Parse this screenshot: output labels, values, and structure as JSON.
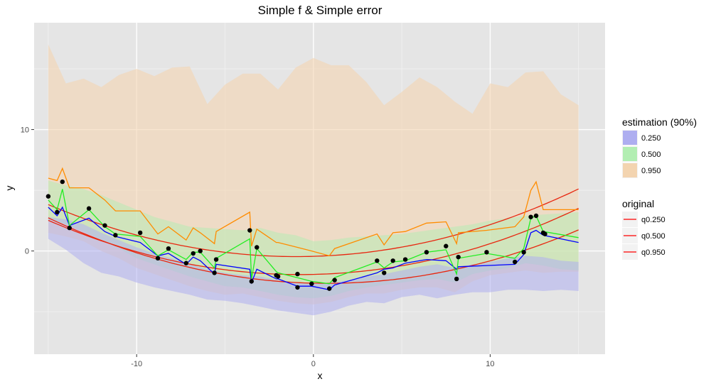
{
  "chart_data": {
    "type": "line",
    "title": "Simple f & Simple error",
    "xlabel": "x",
    "ylabel": "y",
    "xlim": [
      -15.8,
      16.5
    ],
    "ylim": [
      -8.5,
      18.8
    ],
    "x_ticks": [
      -10,
      0,
      10
    ],
    "y_ticks": [
      0,
      10
    ],
    "grid": true,
    "background": "#e5e5e5",
    "legends": [
      {
        "title": "estimation (90%)",
        "entries": [
          {
            "label": "0.250",
            "color": "#aeaef0"
          },
          {
            "label": "0.500",
            "color": "#b2eeb2"
          },
          {
            "label": "0.950",
            "color": "#f3d4b0"
          }
        ]
      },
      {
        "title": "original",
        "entries": [
          {
            "label": "q0.250",
            "color": "#ff0000"
          },
          {
            "label": "q0.500",
            "color": "#ff0000"
          },
          {
            "label": "q0.950",
            "color": "#ff0000"
          }
        ]
      }
    ],
    "points": {
      "x": [
        -15,
        -14.5,
        -14.2,
        -13.8,
        -12.7,
        -11.8,
        -11.2,
        -9.8,
        -8.8,
        -8.2,
        -7.2,
        -6.8,
        -6.4,
        -5.6,
        -5.5,
        -3.6,
        -3.5,
        -3.2,
        -2.1,
        -2.0,
        -0.9,
        -0.9,
        -0.1,
        0.9,
        1.2,
        3.6,
        4.0,
        4.5,
        5.2,
        6.4,
        7.5,
        8.1,
        8.2,
        9.8,
        11.4,
        11.9,
        12.3,
        12.6,
        13.0,
        13.1
      ],
      "y": [
        4.5,
        3.2,
        5.7,
        1.9,
        3.5,
        2.1,
        1.3,
        1.5,
        -0.6,
        0.2,
        -1.0,
        -0.2,
        0.0,
        -1.8,
        -0.7,
        1.7,
        -2.5,
        0.3,
        -2.0,
        -2.1,
        -3.0,
        -1.9,
        -2.7,
        -3.1,
        -2.4,
        -0.8,
        -1.8,
        -0.8,
        -0.7,
        -0.1,
        0.4,
        -2.3,
        -0.5,
        -0.1,
        -0.9,
        -0.1,
        2.8,
        2.9,
        1.5,
        1.4
      ]
    },
    "series": [
      {
        "name": "q0.250",
        "type": "curve",
        "color": "#e8260f",
        "a": 0.0217,
        "b": -0.033,
        "c": -2.65
      },
      {
        "name": "q0.500",
        "type": "curve",
        "color": "#e8260f",
        "a": 0.022,
        "b": 0.033,
        "c": -1.93
      },
      {
        "name": "q0.950",
        "type": "curve",
        "color": "#e8260f",
        "a": 0.0218,
        "b": 0.043,
        "c": -0.44
      },
      {
        "name": "0.250",
        "type": "line",
        "color": "#0000ff",
        "x": [
          -15,
          -14.5,
          -14.2,
          -13.8,
          -12.7,
          -11.8,
          -11.2,
          -9.8,
          -8.8,
          -8.2,
          -7.2,
          -6.8,
          -6.4,
          -5.6,
          -5.5,
          -3.6,
          -3.5,
          -3.2,
          -2.1,
          -2.0,
          -0.9,
          -0.1,
          0.9,
          1.2,
          3.6,
          4.0,
          4.5,
          5.2,
          6.4,
          7.5,
          8.1,
          8.2,
          9.8,
          11.4,
          11.9,
          12.3,
          12.6,
          13.0,
          15
        ],
        "y": [
          3.6,
          2.9,
          3.6,
          2.1,
          2.7,
          1.6,
          1.2,
          0.7,
          -0.4,
          -0.2,
          -1.1,
          -0.5,
          -0.8,
          -1.9,
          -1.1,
          -1.5,
          -2.6,
          -1.5,
          -2.3,
          -2.3,
          -2.9,
          -2.9,
          -3.2,
          -2.8,
          -1.8,
          -1.5,
          -1.4,
          -1.0,
          -0.7,
          -0.8,
          -1.5,
          -1.3,
          -1.2,
          -1.1,
          -0.3,
          1.5,
          1.7,
          1.3,
          0.7
        ]
      },
      {
        "name": "0.500",
        "type": "line",
        "color": "#22ee22",
        "x": [
          -15,
          -14.5,
          -14.2,
          -13.8,
          -12.7,
          -11.8,
          -11.2,
          -9.8,
          -8.8,
          -8.2,
          -7.2,
          -6.8,
          -6.4,
          -5.6,
          -5.5,
          -3.6,
          -3.5,
          -3.2,
          -2.1,
          -2.0,
          -0.9,
          -0.1,
          0.9,
          1.2,
          3.6,
          4.0,
          4.5,
          5.2,
          6.4,
          7.5,
          8.1,
          8.2,
          9.8,
          11.4,
          11.9,
          12.3,
          12.6,
          13.0,
          15
        ],
        "y": [
          4.2,
          3.4,
          5.1,
          2.1,
          3.4,
          2.0,
          1.4,
          1.2,
          -0.4,
          0.1,
          -0.7,
          -0.1,
          -0.1,
          -1.4,
          -0.6,
          1.0,
          -2.3,
          0.2,
          -1.7,
          -1.8,
          -2.2,
          -2.5,
          -2.7,
          -2.2,
          -0.9,
          -1.4,
          -0.9,
          -0.8,
          -0.1,
          0.1,
          -1.9,
          -0.6,
          -0.2,
          -0.6,
          0.2,
          2.7,
          2.9,
          1.6,
          1.1
        ]
      },
      {
        "name": "0.950",
        "type": "line",
        "color": "#ff8c00",
        "x": [
          -15,
          -14.5,
          -14.2,
          -13.8,
          -12.7,
          -11.8,
          -11.2,
          -9.8,
          -8.8,
          -8.2,
          -7.2,
          -6.8,
          -6.4,
          -5.6,
          -5.5,
          -3.6,
          -3.5,
          -3.2,
          -2.1,
          -2.0,
          -0.9,
          -0.1,
          0.9,
          1.2,
          3.6,
          4.0,
          4.5,
          5.2,
          6.4,
          7.5,
          8.1,
          8.2,
          9.8,
          11.4,
          11.9,
          12.3,
          12.6,
          13.0,
          15
        ],
        "y": [
          6.0,
          5.8,
          6.8,
          5.2,
          5.2,
          4.2,
          3.3,
          3.3,
          1.4,
          2.0,
          0.9,
          1.9,
          1.5,
          0.6,
          1.6,
          3.2,
          0.4,
          1.8,
          0.7,
          0.7,
          0.3,
          0.0,
          -0.4,
          0.2,
          1.4,
          0.5,
          1.5,
          1.6,
          2.3,
          2.4,
          0.6,
          1.5,
          1.7,
          2.0,
          2.8,
          5.0,
          5.7,
          3.4,
          3.4
        ]
      }
    ],
    "bands": [
      {
        "name": "0.950",
        "color": "#f3d4b0",
        "opacity": 0.6,
        "x": [
          -15,
          -14,
          -13,
          -12,
          -11,
          -10,
          -9,
          -8,
          -7,
          -6,
          -5,
          -4,
          -3,
          -2,
          -1,
          0,
          1,
          2,
          3,
          4,
          5,
          6,
          7,
          8,
          9,
          10,
          11,
          12,
          13,
          14,
          15
        ],
        "lo": [
          1.5,
          1.2,
          0.8,
          0.0,
          -0.6,
          -1.4,
          -1.9,
          -2.4,
          -2.9,
          -3.3,
          -3.6,
          -3.5,
          -3.8,
          -4.1,
          -4.3,
          -4.4,
          -4.2,
          -3.8,
          -3.5,
          -3.5,
          -3.2,
          -3.0,
          -3.0,
          -3.4,
          -2.5,
          -2.0,
          -1.8,
          -1.6,
          -1.8,
          -1.7,
          -1.7
        ],
        "hi": [
          17.0,
          13.8,
          14.2,
          13.5,
          14.5,
          15.0,
          14.4,
          15.1,
          15.2,
          12.1,
          13.7,
          14.6,
          14.6,
          13.3,
          15.1,
          15.9,
          15.3,
          15.3,
          13.9,
          12.0,
          13.1,
          14.3,
          13.5,
          12.3,
          11.3,
          13.8,
          13.5,
          14.7,
          14.8,
          12.9,
          12.0
        ]
      },
      {
        "name": "0.500",
        "color": "#b2eeb2",
        "opacity": 0.5,
        "x": [
          -15,
          -14,
          -13,
          -12,
          -11,
          -10,
          -9,
          -8,
          -7,
          -6,
          -5,
          -4,
          -3,
          -2,
          -1,
          0,
          1,
          2,
          3,
          4,
          5,
          6,
          7,
          8,
          9,
          10,
          11,
          12,
          13,
          14,
          15
        ],
        "lo": [
          2.6,
          2.2,
          1.6,
          0.9,
          0.2,
          -0.6,
          -1.1,
          -1.6,
          -2.1,
          -2.5,
          -2.9,
          -3.0,
          -3.3,
          -3.6,
          -3.8,
          -3.9,
          -3.7,
          -3.3,
          -3.0,
          -2.8,
          -2.6,
          -2.4,
          -2.3,
          -2.6,
          -1.9,
          -1.6,
          -1.4,
          -1.0,
          -1.2,
          -1.5,
          -1.6
        ],
        "hi": [
          5.8,
          5.4,
          5.1,
          4.6,
          4.0,
          3.4,
          2.8,
          2.4,
          2.0,
          1.9,
          1.8,
          1.7,
          1.9,
          1.5,
          1.3,
          0.8,
          0.9,
          1.1,
          1.2,
          1.3,
          1.4,
          1.6,
          1.8,
          2.0,
          2.2,
          2.5,
          2.7,
          2.9,
          3.0,
          3.1,
          3.2
        ]
      },
      {
        "name": "0.250",
        "color": "#aeaef0",
        "opacity": 0.55,
        "x": [
          -15,
          -14,
          -13,
          -12,
          -11,
          -10,
          -9,
          -8,
          -7,
          -6,
          -5,
          -4,
          -3,
          -2,
          -1,
          0,
          1,
          2,
          3,
          4,
          5,
          6,
          7,
          8,
          9,
          10,
          11,
          12,
          13,
          14,
          15
        ],
        "lo": [
          1.0,
          0.1,
          -1.0,
          -1.8,
          -2.1,
          -2.6,
          -3.0,
          -3.3,
          -3.6,
          -4.0,
          -4.1,
          -4.3,
          -4.6,
          -4.9,
          -5.1,
          -5.3,
          -5.0,
          -4.5,
          -4.2,
          -4.3,
          -3.8,
          -3.6,
          -3.9,
          -3.6,
          -3.4,
          -3.4,
          -3.2,
          -3.2,
          -3.3,
          -3.2,
          -3.3
        ],
        "hi": [
          2.8,
          2.6,
          2.2,
          1.5,
          0.9,
          0.3,
          -0.2,
          -0.6,
          -1.1,
          -1.5,
          -1.8,
          -2.0,
          -2.1,
          -2.4,
          -2.6,
          -2.7,
          -2.6,
          -2.4,
          -2.1,
          -1.9,
          -1.6,
          -1.3,
          -1.1,
          -1.4,
          -1.1,
          -0.9,
          -0.6,
          -0.4,
          -0.5,
          -0.8,
          -0.9
        ]
      }
    ]
  }
}
